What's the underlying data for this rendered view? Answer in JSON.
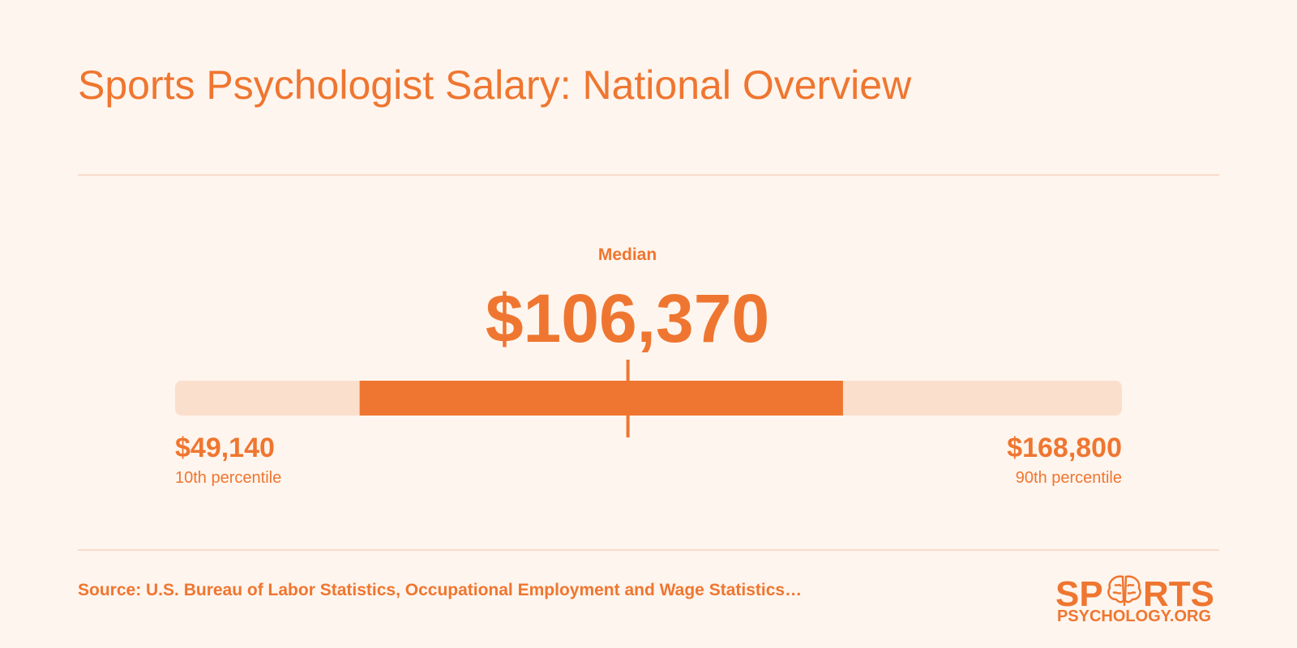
{
  "title": "Sports Psychologist Salary: National Overview",
  "chart_data": {
    "type": "range",
    "median_title": "Median",
    "median": {
      "value": 106370,
      "label": "$106,370"
    },
    "low": {
      "value": 49140,
      "label": "$49,140",
      "caption": "10th percentile"
    },
    "high": {
      "value": 168800,
      "label": "$168,800",
      "caption": "90th percentile"
    },
    "band": [
      72460,
      133550
    ],
    "track_color": "#fbdfcd",
    "band_color": "#ef7630"
  },
  "source": "Source: U.S. Bureau of Labor Statistics, Occupational Employment and Wage Statistics…",
  "logo": {
    "start": "SP",
    "end": "RTS",
    "domain": "PSYCHOLOGY.ORG"
  }
}
